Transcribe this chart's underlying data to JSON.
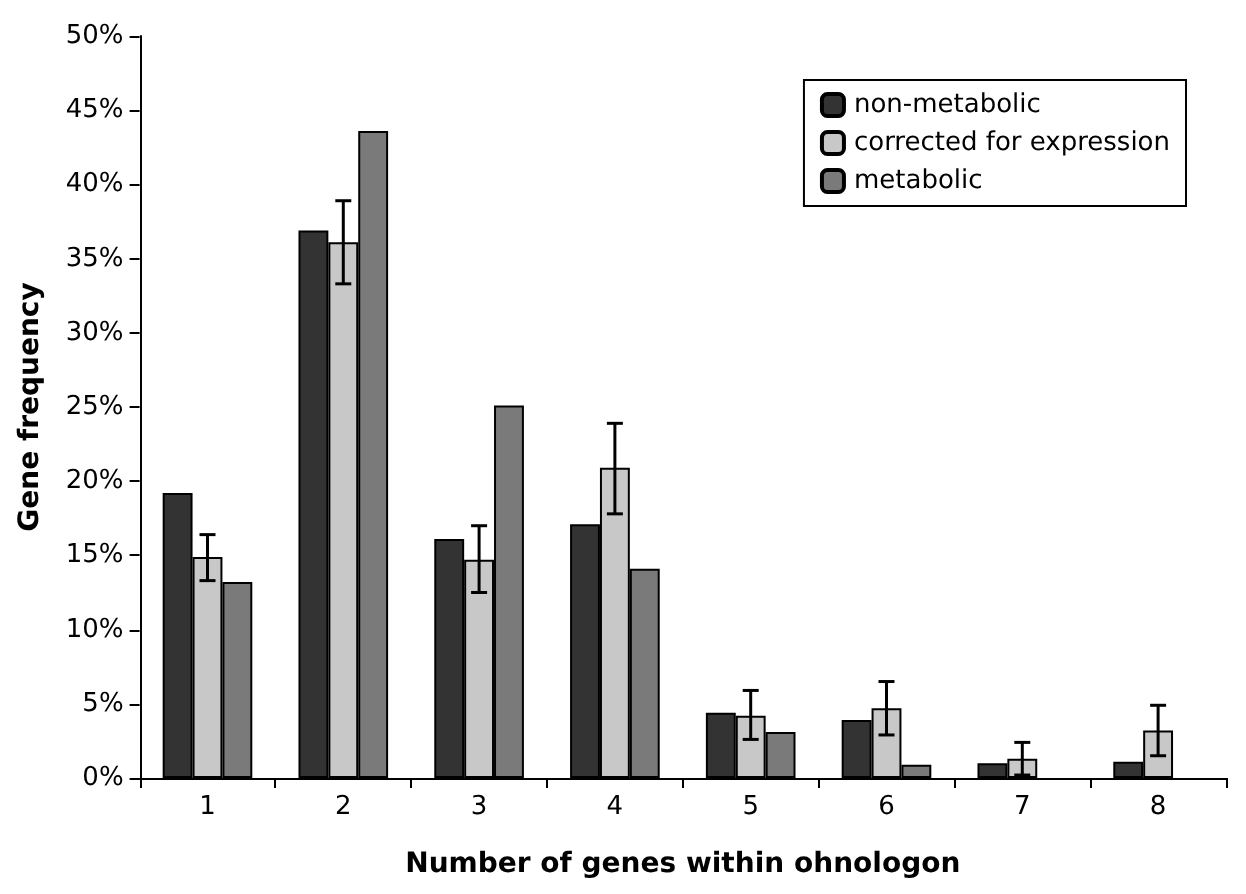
{
  "chart_data": {
    "type": "bar",
    "xlabel": "Number of genes within ohnologon",
    "ylabel": "Gene frequency",
    "categories": [
      "1",
      "2",
      "3",
      "4",
      "5",
      "6",
      "7",
      "8"
    ],
    "series": [
      {
        "name": "non-metabolic",
        "color": "#333333",
        "values": [
          19.2,
          36.9,
          16.1,
          17.1,
          4.4,
          3.9,
          1.0,
          1.1
        ]
      },
      {
        "name": "corrected for expression",
        "color": "#c8c8c8",
        "values": [
          14.9,
          36.1,
          14.7,
          20.9,
          4.2,
          4.7,
          1.3,
          3.2
        ],
        "errors": [
          [
            13.3,
            16.4
          ],
          [
            33.3,
            38.9
          ],
          [
            12.5,
            17.0
          ],
          [
            17.8,
            23.9
          ],
          [
            2.6,
            5.9
          ],
          [
            2.9,
            6.5
          ],
          [
            0.2,
            2.4
          ],
          [
            1.5,
            4.9
          ]
        ]
      },
      {
        "name": "metabolic",
        "color": "#7a7a7a",
        "values": [
          13.2,
          43.6,
          25.1,
          14.1,
          3.1,
          0.9,
          null,
          null
        ]
      }
    ],
    "ylim": [
      0,
      50
    ],
    "yticks": [
      {
        "value": 0,
        "label": "0%"
      },
      {
        "value": 5,
        "label": "5%"
      },
      {
        "value": 10,
        "label": "10%"
      },
      {
        "value": 15,
        "label": "15%"
      },
      {
        "value": 20,
        "label": "20%"
      },
      {
        "value": 25,
        "label": "25%"
      },
      {
        "value": 30,
        "label": "30%"
      },
      {
        "value": 35,
        "label": "35%"
      },
      {
        "value": 40,
        "label": "40%"
      },
      {
        "value": 45,
        "label": "45%"
      },
      {
        "value": 50,
        "label": "50%"
      }
    ],
    "grid": false,
    "legend": "top right"
  }
}
